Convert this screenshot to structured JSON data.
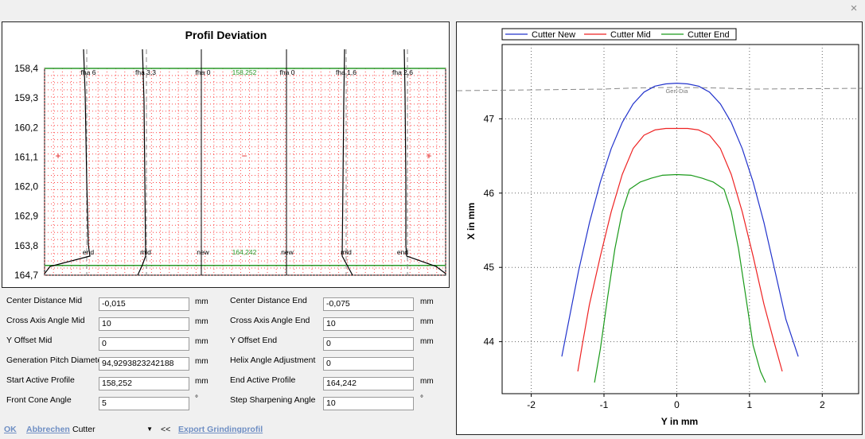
{
  "window": {
    "close_glyph": "×"
  },
  "profile_chart": {
    "title": "Profil Deviation",
    "y_ticks": [
      "158,4",
      "159,3",
      "160,2",
      "161,1",
      "162,0",
      "162,9",
      "163,8",
      "164,7"
    ],
    "top_labels": [
      "fha 6",
      "fha 3,3",
      "fha 0",
      "158,252",
      "fha 0",
      "fha 1,6",
      "fha 2,6"
    ],
    "bottom_labels": [
      "end",
      "mid",
      "new",
      "164,242",
      "new",
      "mid",
      "end"
    ],
    "markers": [
      "+",
      "−",
      "+"
    ],
    "colors": {
      "grid": "#ff4444",
      "reference": "#2a9a2a",
      "curve": "#000000",
      "marker": "#e02020"
    }
  },
  "cutter_chart": {
    "legend": [
      "Cutter New",
      "Cutter Mid",
      "Cutter End"
    ],
    "annotation": "Gen-Dia",
    "chart_data": {
      "type": "line",
      "xlabel": "Y in mm",
      "ylabel": "X in mm",
      "xlim": [
        -2.4,
        2.5
      ],
      "ylim": [
        43.3,
        48.0
      ],
      "x_ticks": [
        "-2",
        "-1",
        "0",
        "1",
        "2"
      ],
      "y_ticks": [
        "44",
        "45",
        "46",
        "47"
      ],
      "reference_line": {
        "label": "Gen-Dia",
        "y": 47.4
      },
      "grid": true,
      "legend_position": "top-left",
      "series": [
        {
          "name": "Cutter New",
          "color": "#2233cc",
          "x": [
            -1.58,
            -1.5,
            -1.35,
            -1.2,
            -1.05,
            -0.9,
            -0.75,
            -0.6,
            -0.45,
            -0.3,
            -0.15,
            0,
            0.15,
            0.3,
            0.45,
            0.6,
            0.75,
            0.9,
            1.05,
            1.2,
            1.35,
            1.5,
            1.67
          ],
          "y": [
            43.8,
            44.2,
            44.95,
            45.6,
            46.15,
            46.6,
            46.95,
            47.2,
            47.36,
            47.44,
            47.47,
            47.48,
            47.47,
            47.44,
            47.36,
            47.2,
            46.95,
            46.6,
            46.15,
            45.6,
            44.95,
            44.3,
            43.8
          ]
        },
        {
          "name": "Cutter Mid",
          "color": "#ee2222",
          "x": [
            -1.36,
            -1.3,
            -1.2,
            -1.05,
            -0.9,
            -0.75,
            -0.6,
            -0.45,
            -0.3,
            -0.15,
            0,
            0.15,
            0.3,
            0.45,
            0.6,
            0.75,
            0.9,
            1.05,
            1.2,
            1.35,
            1.45
          ],
          "y": [
            43.6,
            43.95,
            44.5,
            45.15,
            45.75,
            46.25,
            46.6,
            46.78,
            46.85,
            46.87,
            46.87,
            46.87,
            46.85,
            46.78,
            46.6,
            46.25,
            45.75,
            45.15,
            44.5,
            43.95,
            43.6
          ]
        },
        {
          "name": "Cutter End",
          "color": "#1a9a1a",
          "x": [
            -1.13,
            -1.05,
            -0.95,
            -0.85,
            -0.75,
            -0.65,
            -0.5,
            -0.35,
            -0.2,
            0,
            0.2,
            0.35,
            0.5,
            0.65,
            0.75,
            0.85,
            0.95,
            1.05,
            1.15,
            1.22
          ],
          "y": [
            43.45,
            43.9,
            44.6,
            45.25,
            45.75,
            46.05,
            46.15,
            46.2,
            46.24,
            46.25,
            46.24,
            46.2,
            46.15,
            46.05,
            45.75,
            45.25,
            44.6,
            43.95,
            43.6,
            43.45
          ]
        }
      ]
    }
  },
  "params": {
    "cd_mid": {
      "label": "Center Distance Mid",
      "value": "-0,015",
      "unit": "mm"
    },
    "cd_end": {
      "label": "Center Distance End",
      "value": "-0,075",
      "unit": "mm"
    },
    "caa_mid": {
      "label": "Cross Axis Angle Mid",
      "value": "10",
      "unit": "mm"
    },
    "caa_end": {
      "label": "Cross Axis Angle End",
      "value": "10",
      "unit": "mm"
    },
    "yoff_mid": {
      "label": "Y Offset Mid",
      "value": "0",
      "unit": "mm"
    },
    "yoff_end": {
      "label": "Y Offset End",
      "value": "0",
      "unit": "mm"
    },
    "gen_pitch": {
      "label": "Generation Pitch Diameter",
      "value": "94,9293823242188",
      "unit": "mm"
    },
    "helix": {
      "label": "Helix Angle Adjustment",
      "value": "0",
      "unit": ""
    },
    "start_profile": {
      "label": "Start Active Profile",
      "value": "158,252",
      "unit": "mm"
    },
    "end_profile": {
      "label": "End Active Profile",
      "value": "164,242",
      "unit": "mm"
    },
    "front_cone": {
      "label": "Front Cone Angle",
      "value": "5",
      "unit": "°"
    },
    "step_sharp": {
      "label": "Step Sharpening Angle",
      "value": "10",
      "unit": "°"
    }
  },
  "footer": {
    "ok_label": "OK",
    "cancel_label": "Abbrechen",
    "cutter_value": "Cutter",
    "collapse_label": "<<",
    "export_label": "Export Grindingprofil"
  }
}
